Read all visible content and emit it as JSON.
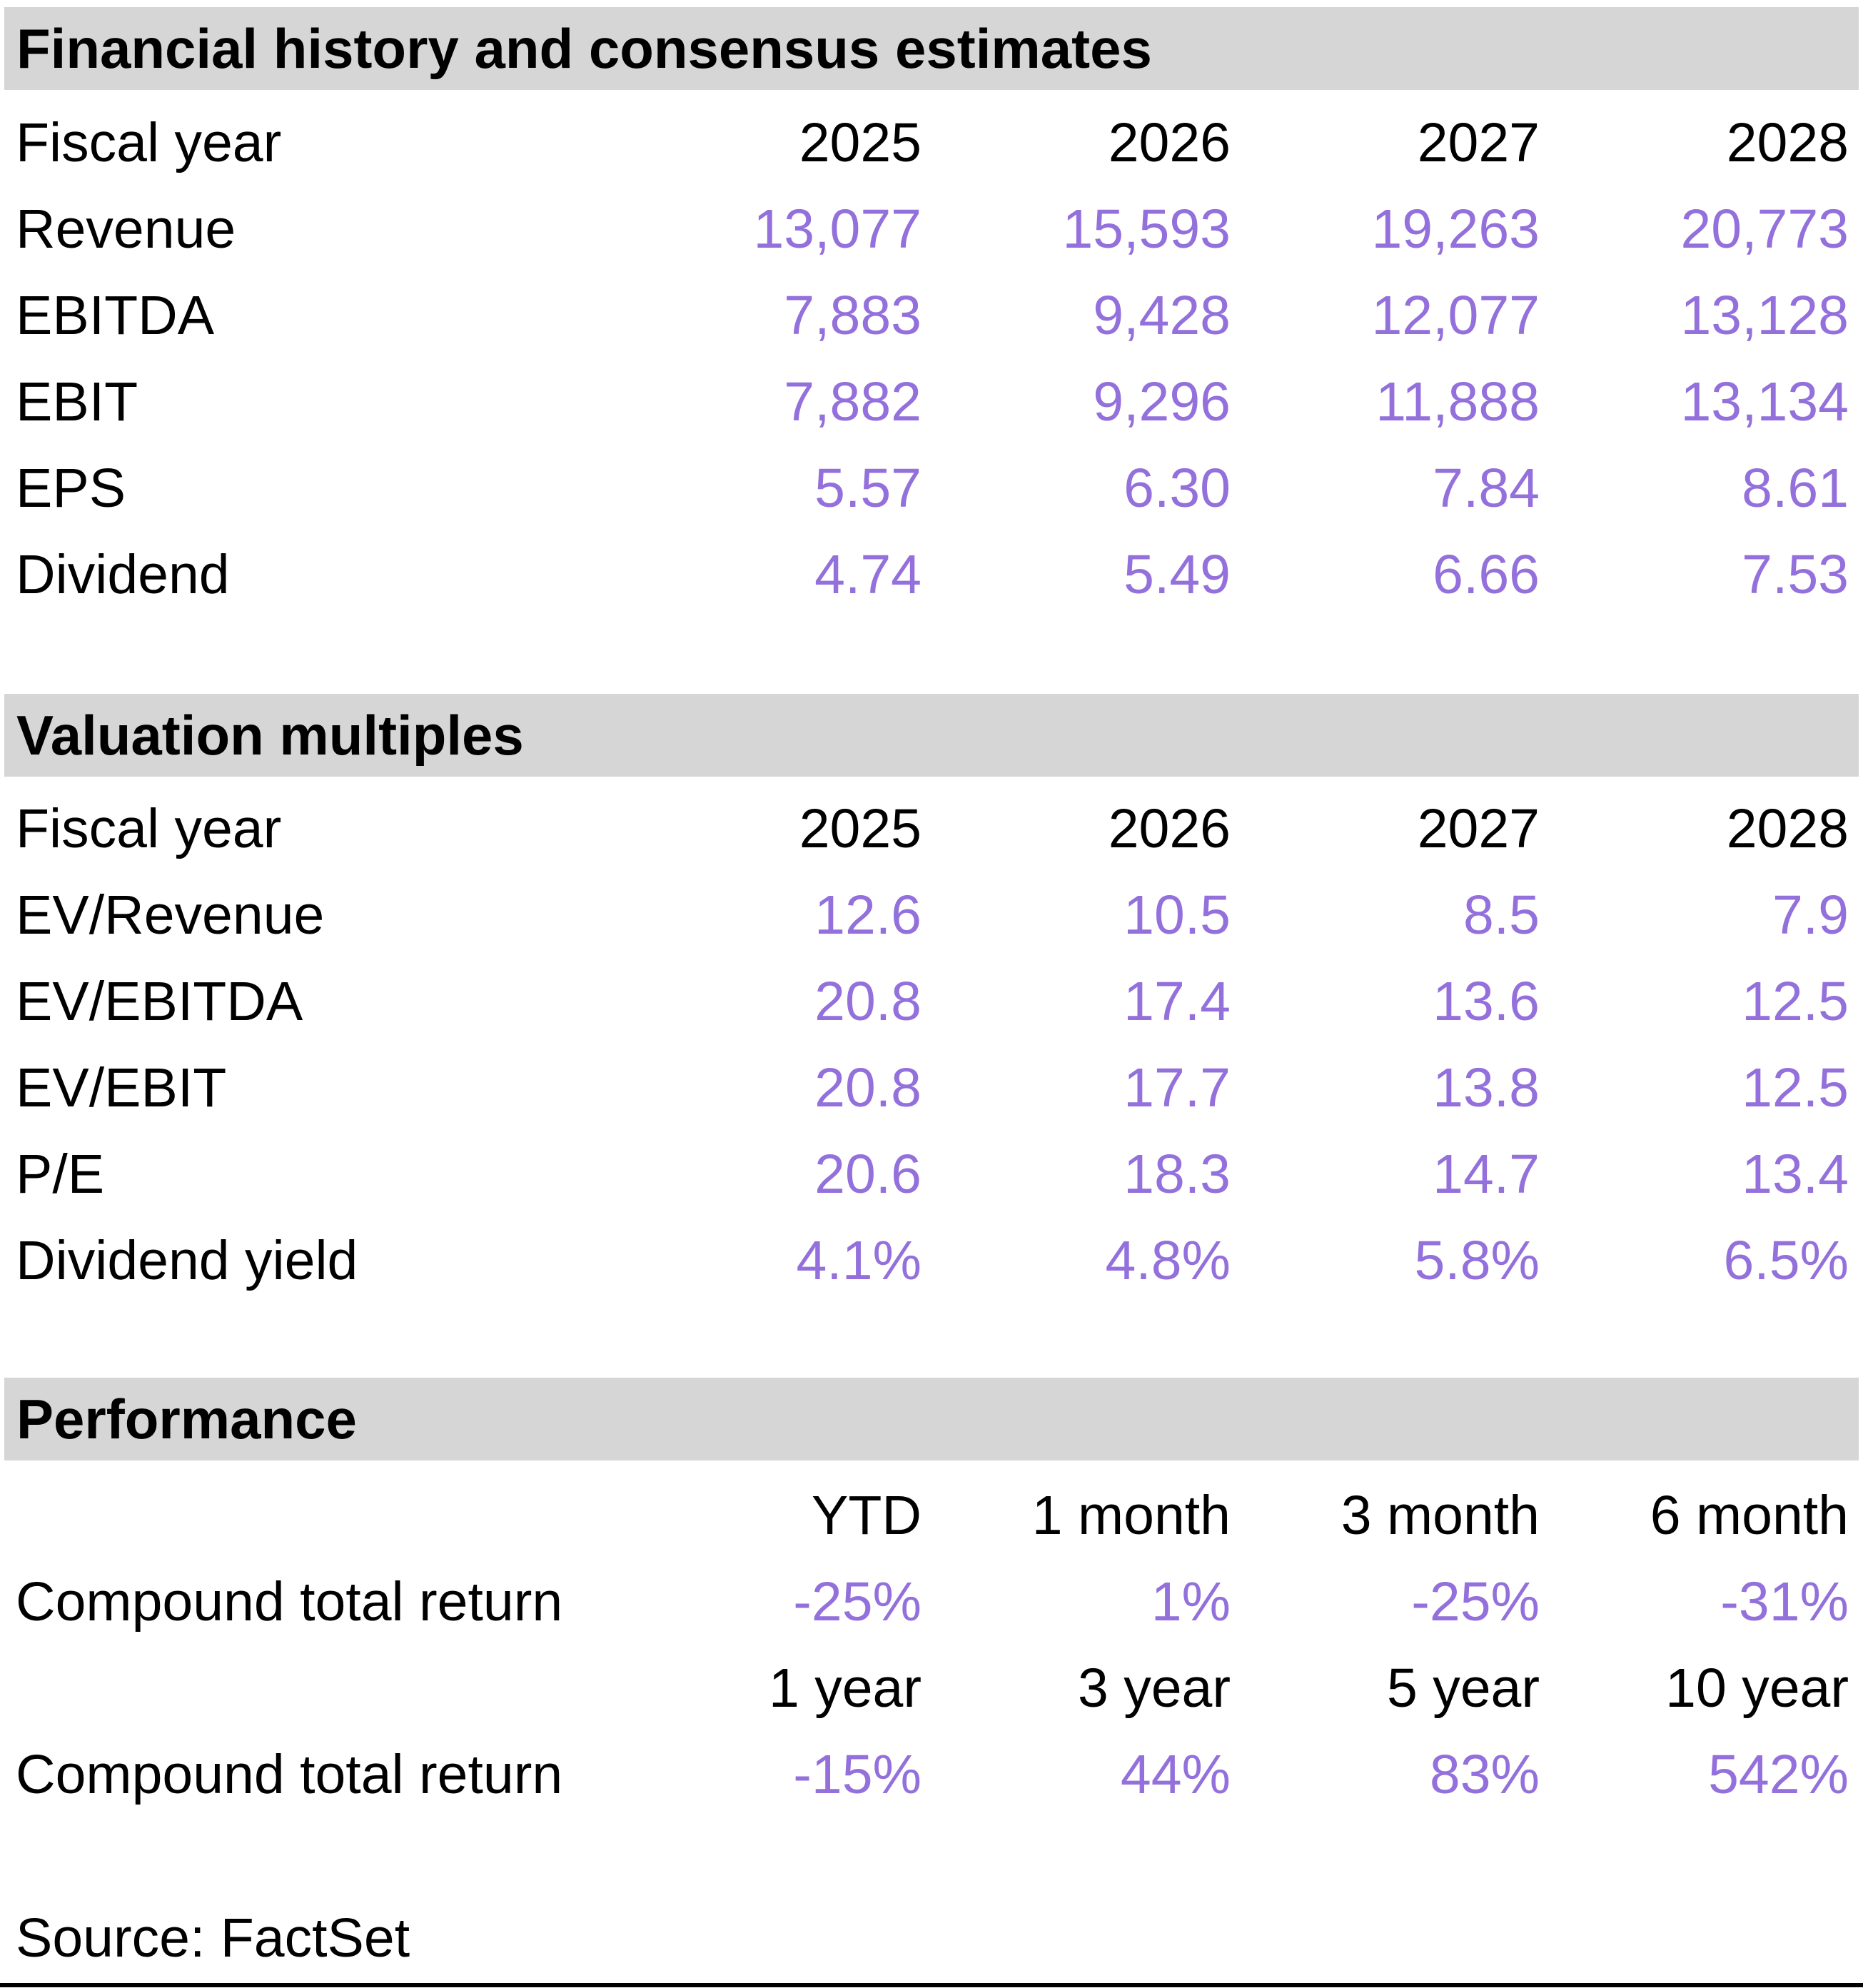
{
  "colors": {
    "header_bg": "#D6D6D6",
    "accent": "#9370DB",
    "rule": "#000000"
  },
  "financial_history": {
    "title": "Financial history and consensus estimates",
    "fiscal_year_label": "Fiscal year",
    "years": [
      "2025",
      "2026",
      "2027",
      "2028"
    ],
    "rows": [
      {
        "label": "Revenue",
        "values": [
          "13,077",
          "15,593",
          "19,263",
          "20,773"
        ]
      },
      {
        "label": "EBITDA",
        "values": [
          "7,883",
          "9,428",
          "12,077",
          "13,128"
        ]
      },
      {
        "label": "EBIT",
        "values": [
          "7,882",
          "9,296",
          "11,888",
          "13,134"
        ]
      },
      {
        "label": "EPS",
        "values": [
          "5.57",
          "6.30",
          "7.84",
          "8.61"
        ]
      },
      {
        "label": "Dividend",
        "values": [
          "4.74",
          "5.49",
          "6.66",
          "7.53"
        ]
      }
    ]
  },
  "valuation": {
    "title": "Valuation multiples",
    "fiscal_year_label": "Fiscal year",
    "years": [
      "2025",
      "2026",
      "2027",
      "2028"
    ],
    "rows": [
      {
        "label": "EV/Revenue",
        "values": [
          "12.6",
          "10.5",
          "8.5",
          "7.9"
        ]
      },
      {
        "label": "EV/EBITDA",
        "values": [
          "20.8",
          "17.4",
          "13.6",
          "12.5"
        ]
      },
      {
        "label": "EV/EBIT",
        "values": [
          "20.8",
          "17.7",
          "13.8",
          "12.5"
        ]
      },
      {
        "label": "P/E",
        "values": [
          "20.6",
          "18.3",
          "14.7",
          "13.4"
        ]
      },
      {
        "label": "Dividend yield",
        "values": [
          "4.1%",
          "4.8%",
          "5.8%",
          "6.5%"
        ]
      }
    ]
  },
  "performance": {
    "title": "Performance",
    "group1": {
      "periods": [
        "YTD",
        "1 month",
        "3 month",
        "6 month"
      ],
      "label": "Compound total return",
      "values": [
        "-25%",
        "1%",
        "-25%",
        "-31%"
      ]
    },
    "group2": {
      "periods": [
        "1 year",
        "3 year",
        "5 year",
        "10 year"
      ],
      "label": "Compound total return",
      "values": [
        "-15%",
        "44%",
        "83%",
        "542%"
      ]
    }
  },
  "source_note": "Source: FactSet"
}
